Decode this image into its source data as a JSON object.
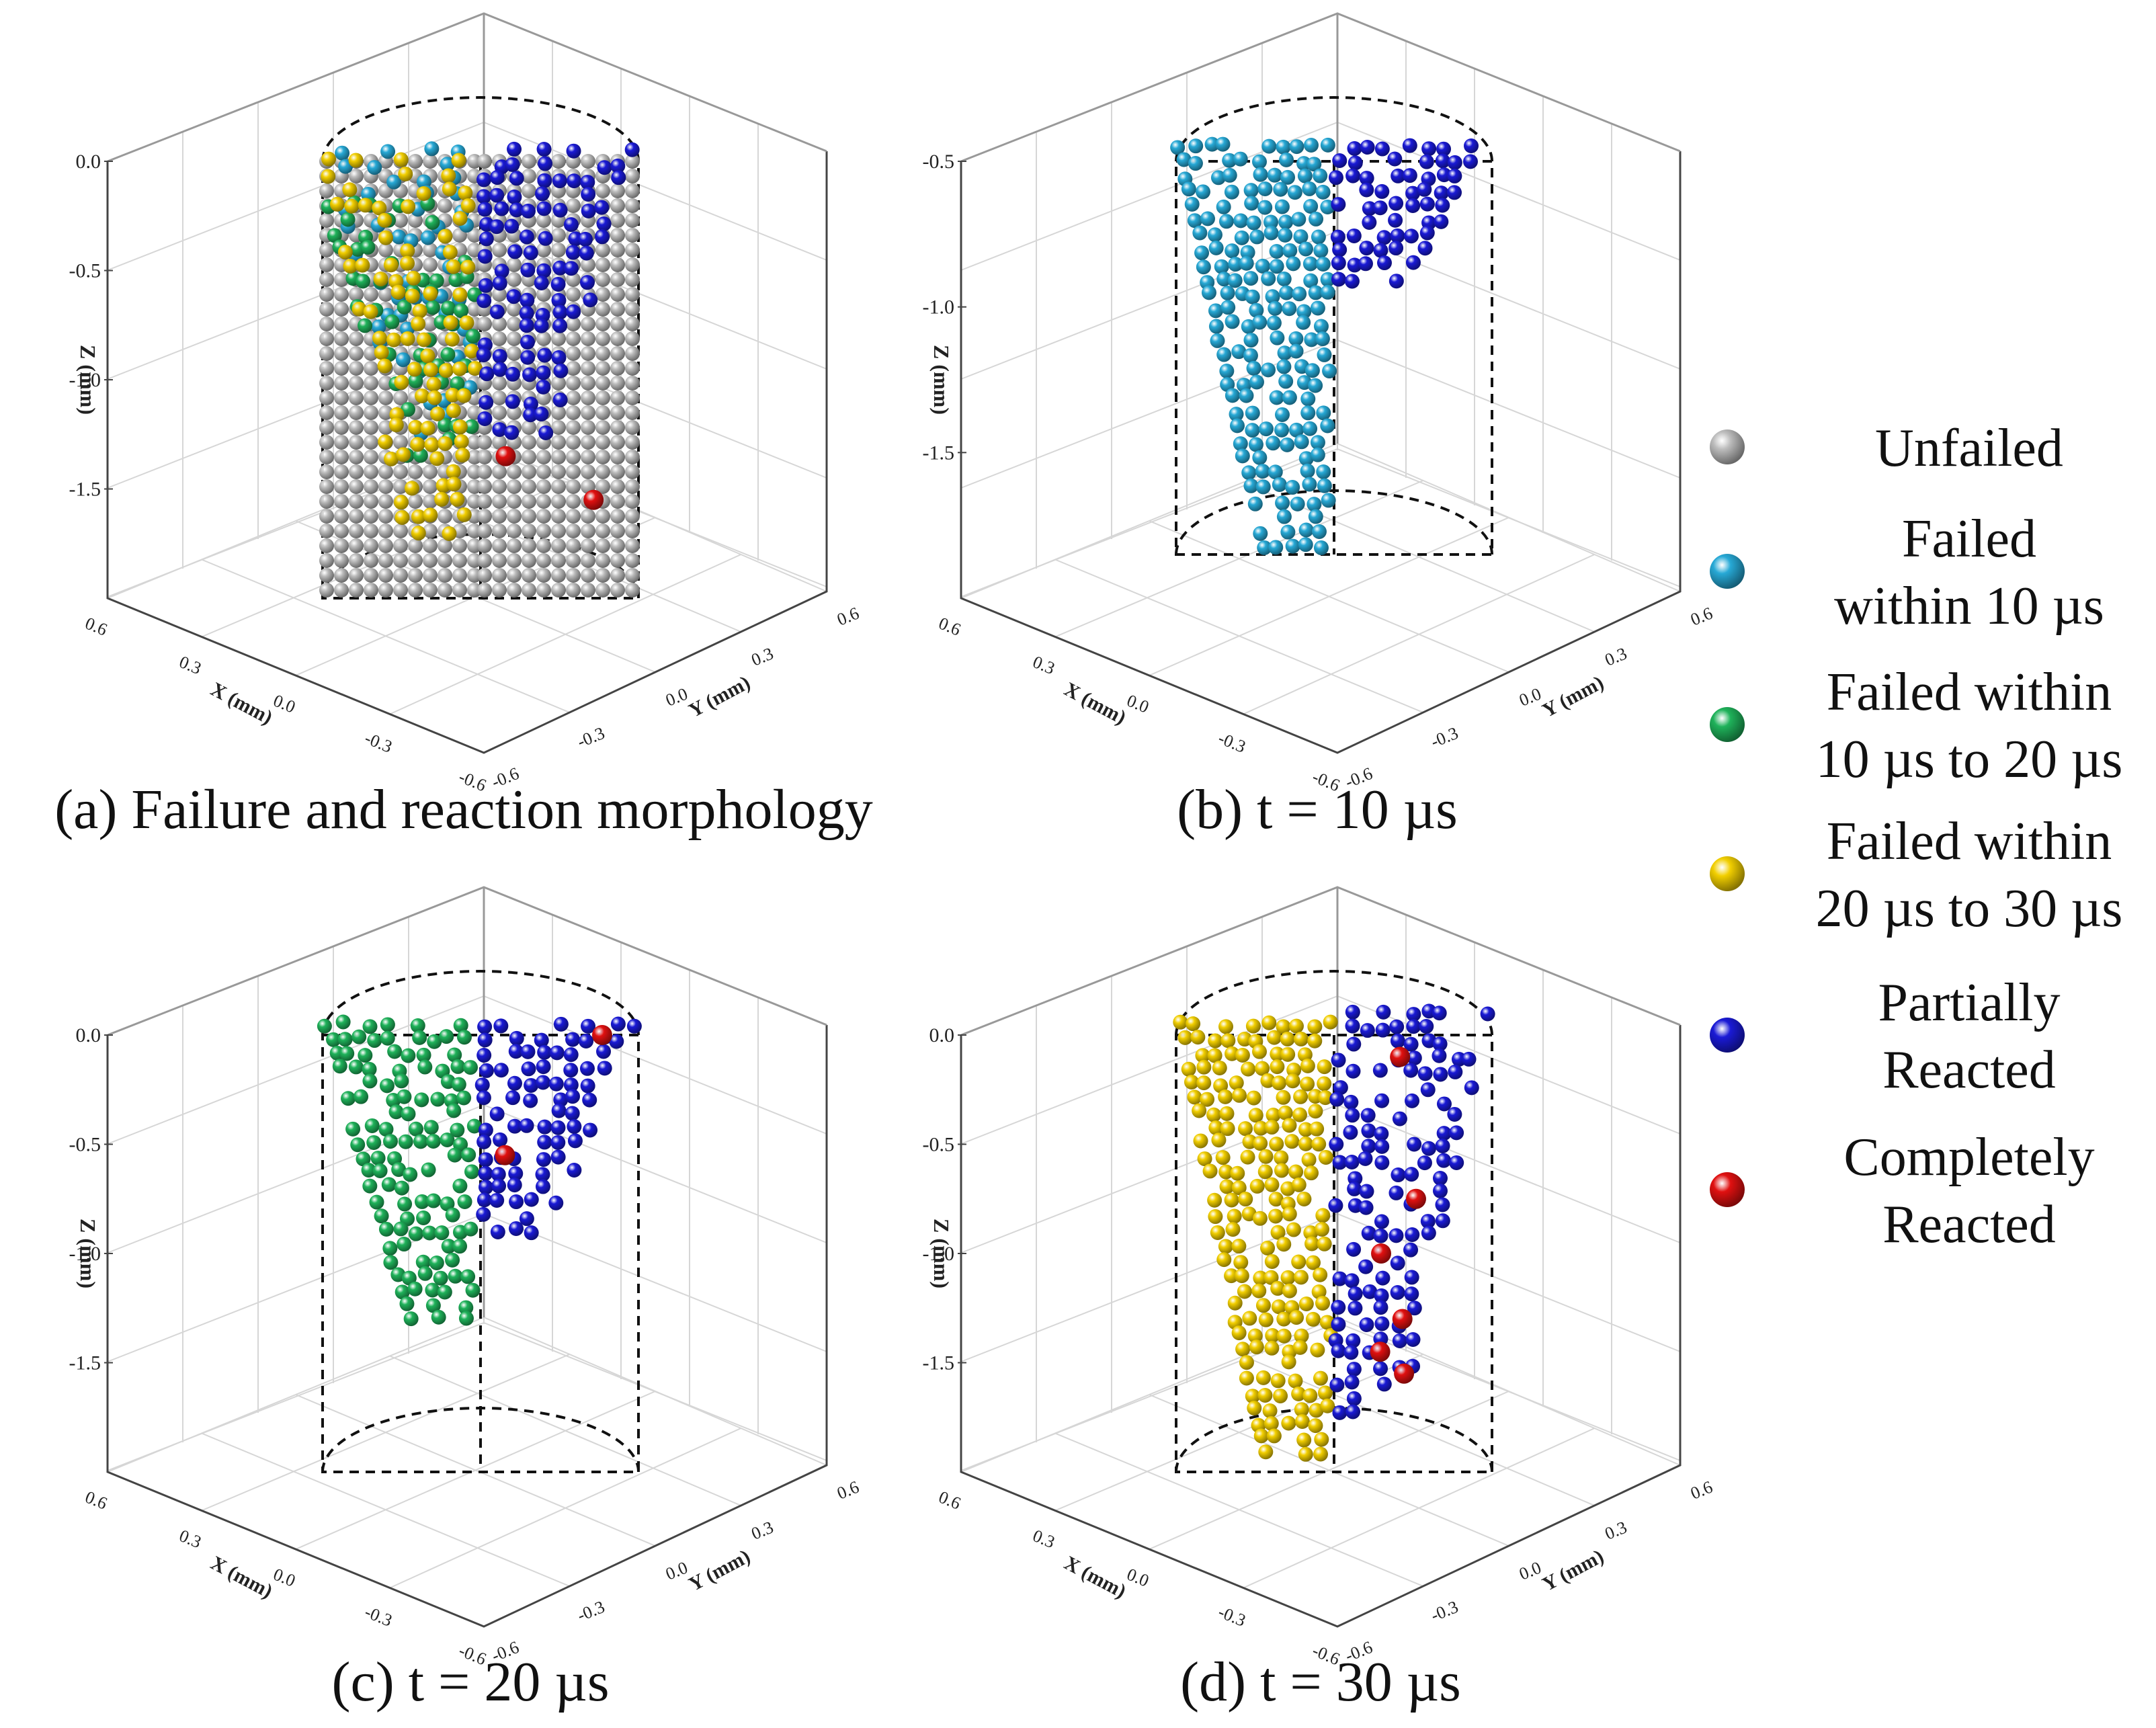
{
  "colors": {
    "unfailed": "#bdbdbd",
    "failed_10": "#27a9d6",
    "failed_10_20": "#1fb25a",
    "failed_20_30": "#f2cf00",
    "partial": "#1a1ad6",
    "complete": "#e01010",
    "axis": "#444444",
    "grid": "#d6d6d6"
  },
  "legend": [
    {
      "key": "unfailed",
      "lines": [
        "Unfailed"
      ]
    },
    {
      "key": "failed_10",
      "lines": [
        "Failed",
        "within 10 µs"
      ]
    },
    {
      "key": "failed_10_20",
      "lines": [
        "Failed within",
        "10 µs to 20 µs"
      ]
    },
    {
      "key": "failed_20_30",
      "lines": [
        "Failed within",
        "20 µs to 30 µs"
      ]
    },
    {
      "key": "partial",
      "lines": [
        "Partially",
        "Reacted"
      ]
    },
    {
      "key": "complete",
      "lines": [
        "Completely",
        "Reacted"
      ]
    }
  ],
  "chart_data": [
    {
      "type": "scatter",
      "panel": "a",
      "title": "(a) Failure and reaction morphology",
      "zlabel": "Z (mm)",
      "xlabel": "X (mm)",
      "ylabel": "Y (mm)",
      "zticks": [
        "0.0",
        "-0.5",
        "-1.0",
        "-1.5"
      ],
      "xticks": [
        "0.6",
        "0.3",
        "0.0",
        "-0.3",
        "-0.6"
      ],
      "yticks": [
        "0.6",
        "0.3",
        "0.0",
        "-0.3",
        "-0.6"
      ],
      "zlim": [
        -2.0,
        0.0
      ],
      "cylinder_z": [
        -2.0,
        0.0
      ],
      "clusters": [
        {
          "material": "unfailed",
          "side": "left",
          "z_range": [
            -2.0,
            0.0
          ],
          "density": 1.0,
          "mode": "grid"
        },
        {
          "material": "unfailed",
          "side": "right",
          "z_range": [
            -2.0,
            0.0
          ],
          "density": 1.0,
          "mode": "grid"
        },
        {
          "material": "failed_10",
          "side": "left",
          "z_range": [
            -1.3,
            0.05
          ],
          "density": 0.35
        },
        {
          "material": "failed_10_20",
          "side": "left",
          "z_range": [
            -1.4,
            -0.2
          ],
          "density": 0.45
        },
        {
          "material": "failed_20_30",
          "side": "left",
          "z_range": [
            -1.8,
            0.0
          ],
          "density": 0.45
        },
        {
          "material": "partial",
          "side": "right",
          "z_range": [
            -1.3,
            0.05
          ],
          "density": 0.6
        },
        {
          "material": "complete",
          "side": "right",
          "points": [
            [
              -1.35
            ],
            [
              -1.55
            ]
          ]
        }
      ]
    },
    {
      "type": "scatter",
      "panel": "b",
      "title": "(b) t = 10 µs",
      "zlabel": "Z (mm)",
      "xlabel": "X (mm)",
      "ylabel": "Y (mm)",
      "zticks": [
        "-0.5",
        "-1.0",
        "-1.5"
      ],
      "xticks": [
        "0.6",
        "0.3",
        "0.0",
        "-0.3",
        "-0.6"
      ],
      "yticks": [
        "0.6",
        "0.3",
        "0.0",
        "-0.3",
        "-0.6"
      ],
      "zlim": [
        -2.0,
        -0.5
      ],
      "cylinder_z": [
        -1.85,
        -0.5
      ],
      "clusters": [
        {
          "material": "failed_10",
          "side": "left",
          "z_range": [
            -1.85,
            -0.45
          ],
          "density": 0.85
        },
        {
          "material": "partial",
          "side": "right",
          "z_range": [
            -0.95,
            -0.45
          ],
          "density": 0.7
        }
      ]
    },
    {
      "type": "scatter",
      "panel": "c",
      "title": "(c) t = 20 µs",
      "zlabel": "Z (mm)",
      "xlabel": "X (mm)",
      "ylabel": "Y (mm)",
      "zticks": [
        "0.0",
        "-0.5",
        "-1.0",
        "-1.5"
      ],
      "xticks": [
        "0.6",
        "0.3",
        "0.0",
        "-0.3",
        "-0.6"
      ],
      "yticks": [
        "0.6",
        "0.3",
        "0.0",
        "-0.3",
        "-0.6"
      ],
      "zlim": [
        -2.0,
        0.0
      ],
      "cylinder_z": [
        -2.0,
        0.0
      ],
      "clusters": [
        {
          "material": "failed_10_20",
          "side": "left",
          "z_range": [
            -1.35,
            0.05
          ],
          "density": 0.75
        },
        {
          "material": "partial",
          "side": "right",
          "z_range": [
            -0.95,
            0.05
          ],
          "density": 0.7
        },
        {
          "material": "complete",
          "side": "right",
          "points": [
            [
              0.0
            ],
            [
              -0.55
            ]
          ]
        }
      ]
    },
    {
      "type": "scatter",
      "panel": "d",
      "title": "(d) t = 30 µs",
      "zlabel": "Z (mm)",
      "xlabel": "X (mm)",
      "ylabel": "Y (mm)",
      "zticks": [
        "0.0",
        "-0.5",
        "-1.0",
        "-1.5"
      ],
      "xticks": [
        "0.6",
        "0.3",
        "0.0",
        "-0.3",
        "-0.6"
      ],
      "yticks": [
        "0.6",
        "0.3",
        "0.0",
        "-0.3",
        "-0.6"
      ],
      "zlim": [
        -2.0,
        0.0
      ],
      "cylinder_z": [
        -2.0,
        0.0
      ],
      "clusters": [
        {
          "material": "failed_20_30",
          "side": "left",
          "z_range": [
            -1.95,
            0.05
          ],
          "density": 0.8
        },
        {
          "material": "partial",
          "side": "right",
          "z_range": [
            -1.75,
            0.1
          ],
          "density": 0.55
        },
        {
          "material": "complete",
          "side": "right",
          "points": [
            [
              -0.1
            ],
            [
              -0.75
            ],
            [
              -1.0
            ],
            [
              -1.3
            ],
            [
              -1.45
            ],
            [
              -1.55
            ]
          ]
        }
      ]
    }
  ]
}
